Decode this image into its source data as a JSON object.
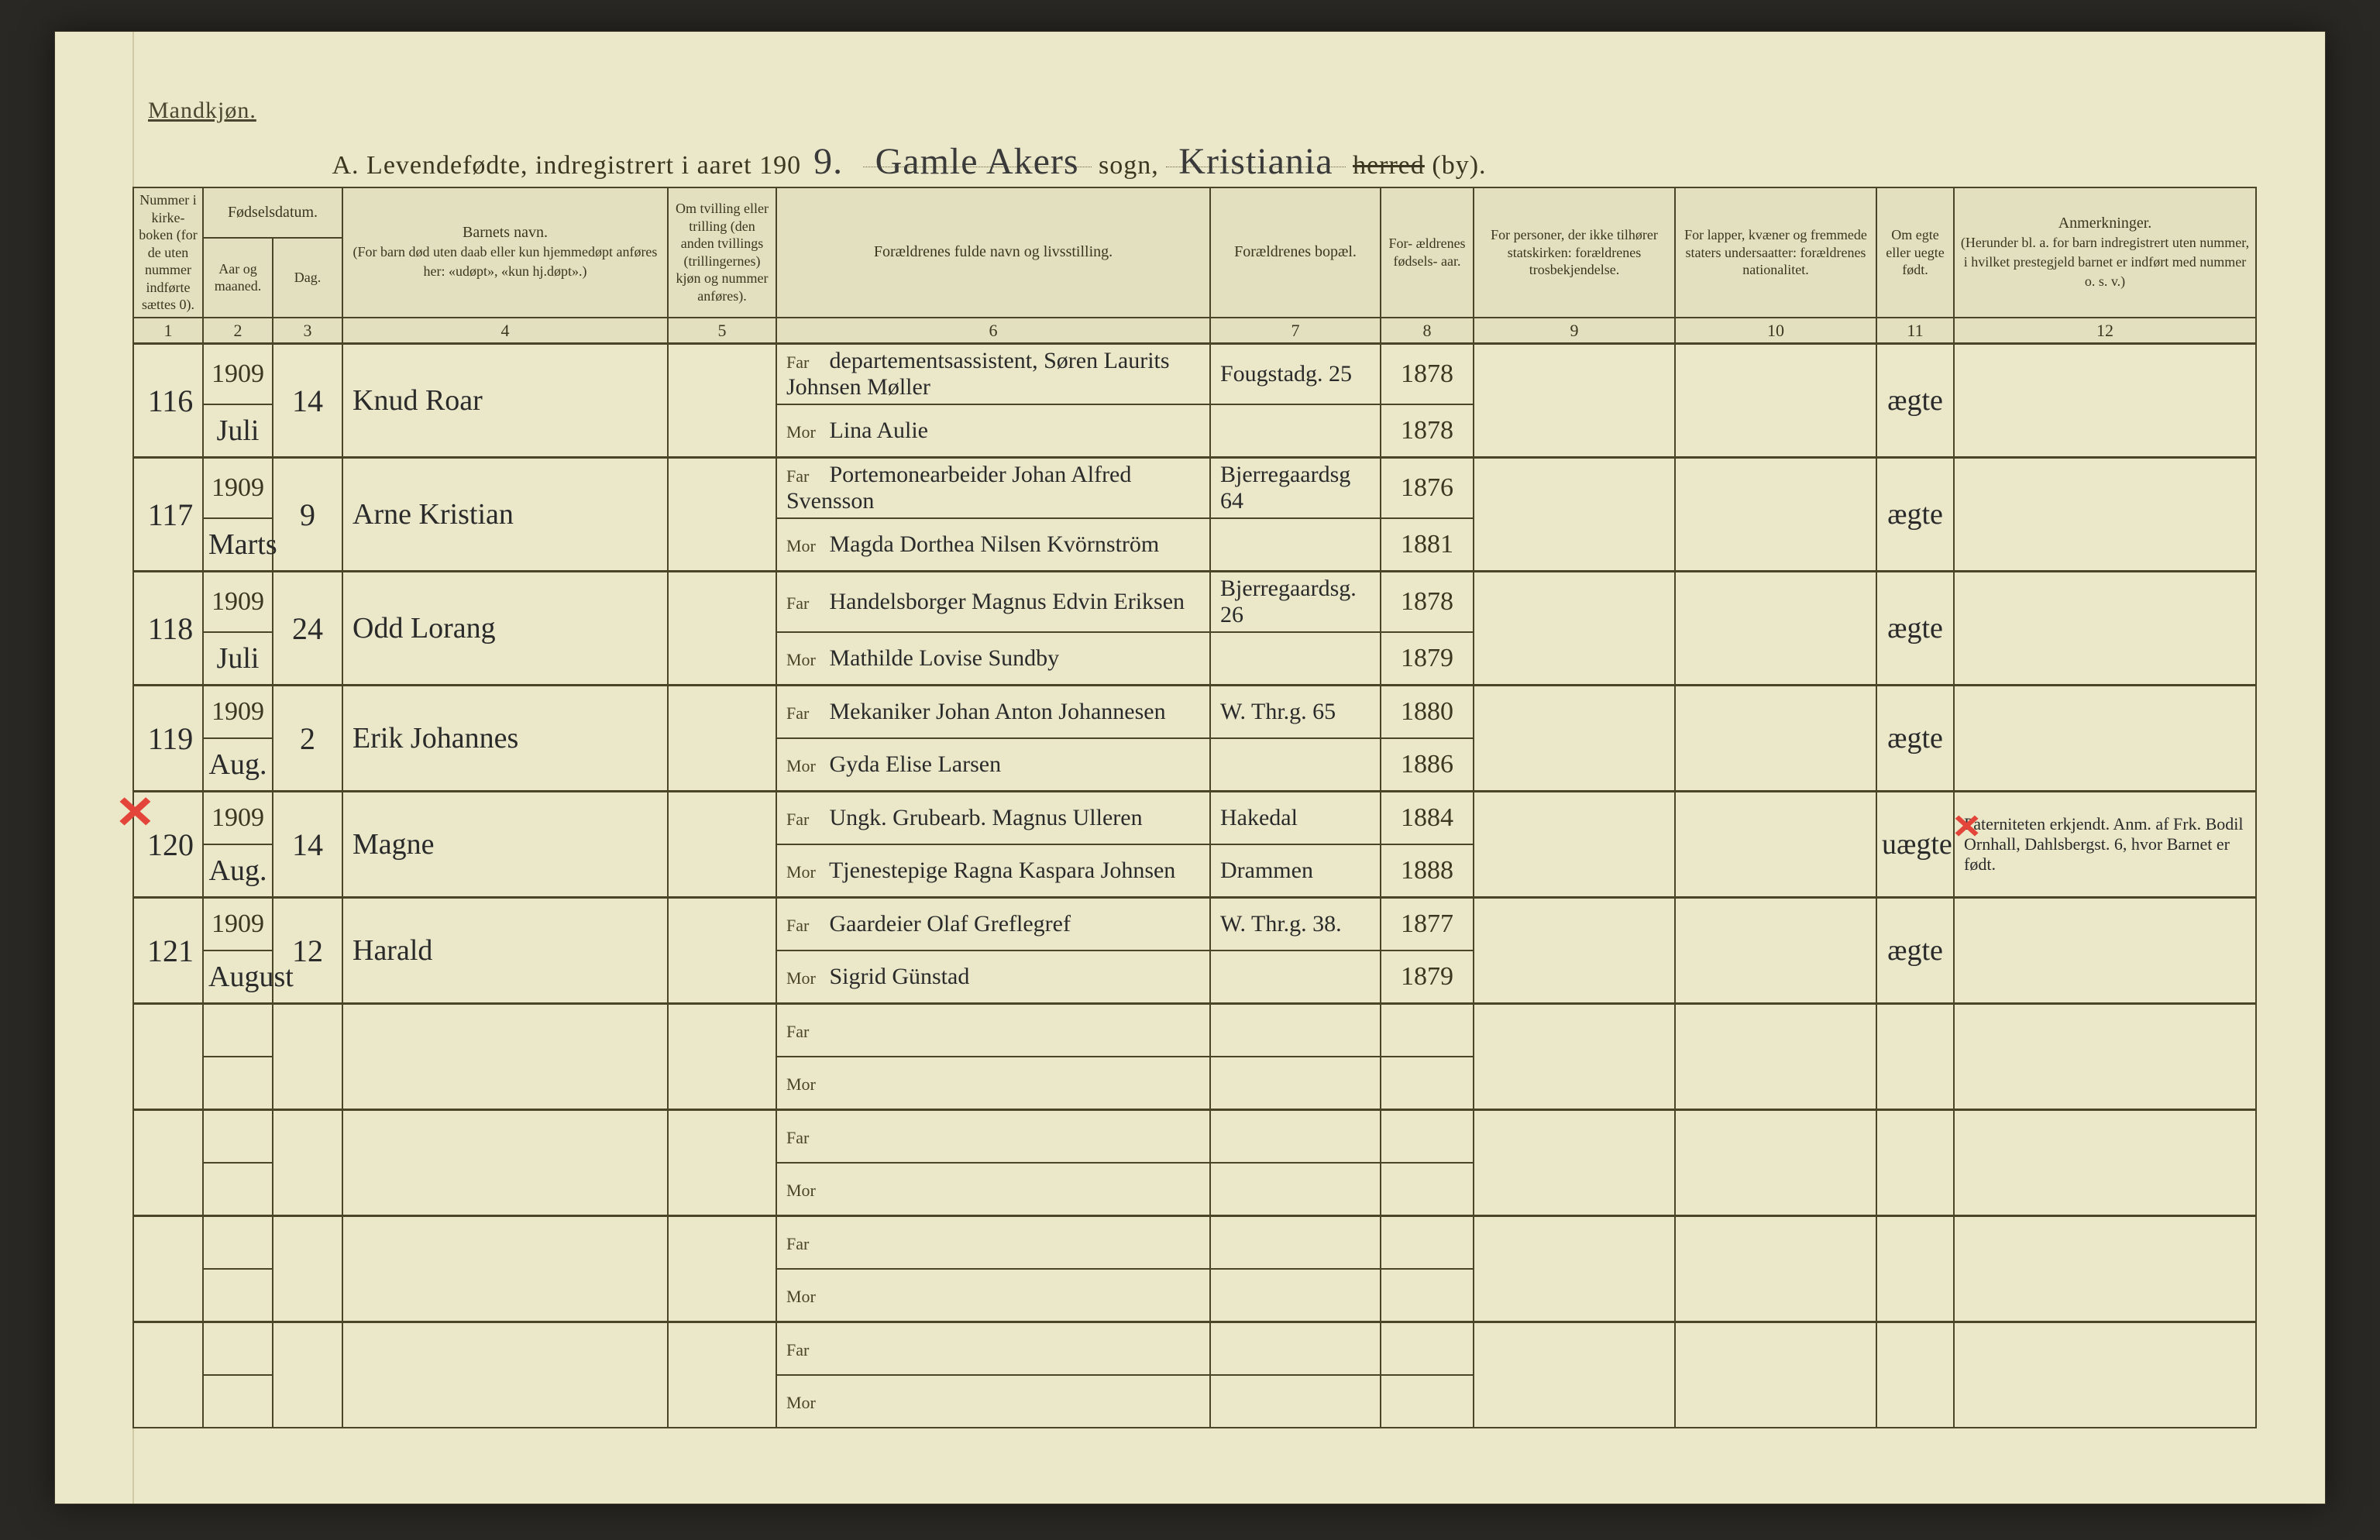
{
  "header": {
    "gender_label": "Mandkjøn.",
    "title_prefix": "A.  Levendefødte, indregistrert i aaret 190",
    "year_suffix": "9.",
    "sogn_hand": "Gamle Akers",
    "sogn_label": "sogn,",
    "by_hand": "Kristiania",
    "herred_label_strike": "herred",
    "by_label": "(by)."
  },
  "columns": {
    "c1": "Nummer i kirke- boken (for de uten nummer indførte sættes 0).",
    "c23_top": "Fødselsdatum.",
    "c2": "Aar og maaned.",
    "c3": "Dag.",
    "c4_top": "Barnets navn.",
    "c4_sub": "(For barn død uten daab eller kun hjemmedøpt anføres her: «udøpt», «kun hj.døpt».)",
    "c5": "Om tvilling eller trilling (den anden tvillings (trillingernes) kjøn og nummer anføres).",
    "c6": "Forældrenes fulde navn og livsstilling.",
    "c7": "Forældrenes bopæl.",
    "c8": "For- ældrenes fødsels- aar.",
    "c9": "For personer, der ikke tilhører statskirken: forældrenes trosbekjendelse.",
    "c10": "For lapper, kvæner og fremmede staters undersaatter: forældrenes nationalitet.",
    "c11": "Om egte eller uegte født.",
    "c12_top": "Anmerkninger.",
    "c12_sub": "(Herunder bl. a. for barn indregistrert uten nummer, i hvilket prestegjeld barnet er indført med nummer o. s. v.)",
    "nums": [
      "1",
      "2",
      "3",
      "4",
      "5",
      "6",
      "7",
      "8",
      "9",
      "10",
      "11",
      "12"
    ],
    "far": "Far",
    "mor": "Mor"
  },
  "rows": [
    {
      "n": "116",
      "year": "1909",
      "month": "Juli",
      "day": "14",
      "name": "Knud Roar",
      "far": "departementsassistent, Søren Laurits Johnsen Møller",
      "mor": "Lina Aulie",
      "addr": "Fougstadg. 25",
      "far_yr": "1878",
      "mor_yr": "1878",
      "legit": "ægte"
    },
    {
      "n": "117",
      "year": "1909",
      "month": "Marts",
      "day": "9",
      "name": "Arne Kristian",
      "far": "Portemonearbeider Johan Alfred Svensson",
      "mor": "Magda Dorthea Nilsen Kvörnström",
      "addr": "Bjerregaardsg 64",
      "far_yr": "1876",
      "mor_yr": "1881",
      "legit": "ægte"
    },
    {
      "n": "118",
      "year": "1909",
      "month": "Juli",
      "day": "24",
      "name": "Odd Lorang",
      "far": "Handelsborger Magnus Edvin Eriksen",
      "mor": "Mathilde Lovise Sundby",
      "addr": "Bjerregaardsg. 26",
      "far_yr": "1878",
      "mor_yr": "1879",
      "legit": "ægte"
    },
    {
      "n": "119",
      "year": "1909",
      "month": "Aug.",
      "day": "2",
      "name": "Erik Johannes",
      "far": "Mekaniker Johan Anton Johannesen",
      "mor": "Gyda Elise Larsen",
      "addr": "W. Thr.g. 65",
      "far_yr": "1880",
      "mor_yr": "1886",
      "legit": "ægte"
    },
    {
      "n": "120",
      "year": "1909",
      "month": "Aug.",
      "day": "14",
      "name": "Magne",
      "far": "Ungk. Grubearb. Magnus Ulleren",
      "mor": "Tjenestepige Ragna Kaspara Johnsen",
      "addr": "Hakedal",
      "addr2": "Drammen",
      "far_yr": "1884",
      "mor_yr": "1888",
      "legit": "uægte",
      "note": "Paterniteten erkjendt. Anm. af Frk. Bodil Ornhall, Dahlsbergst. 6, hvor Barnet er født."
    },
    {
      "n": "121",
      "year": "1909",
      "month": "August",
      "day": "12",
      "name": "Harald",
      "far": "Gaardeier Olaf Greflegref",
      "mor": "Sigrid Günstad",
      "addr": "W. Thr.g. 38.",
      "far_yr": "1877",
      "mor_yr": "1879",
      "legit": "ægte"
    }
  ],
  "colors": {
    "paper": "#eae8c9",
    "ink": "#3a3620",
    "rule": "#4a4428",
    "red": "#e4453a"
  }
}
